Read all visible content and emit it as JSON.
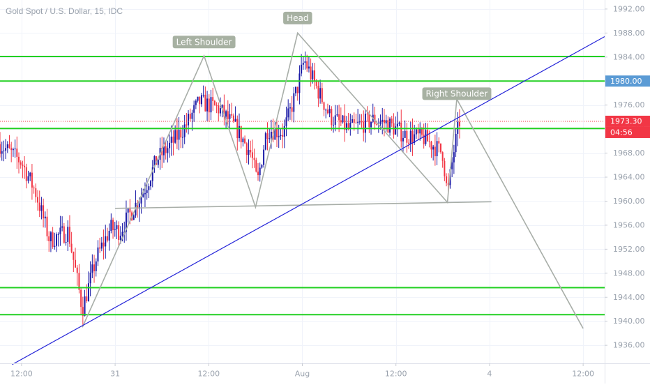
{
  "chart_data": {
    "type": "candlestick",
    "title": "Gold Spot / U.S. Dollar, 15, IDC",
    "y_axis": {
      "ticks": [
        1936,
        1940,
        1944,
        1948,
        1952,
        1956,
        1960,
        1964,
        1968,
        1972,
        1976,
        1980,
        1984,
        1988,
        1992
      ],
      "tick_labels": [
        "1936.00",
        "1940.00",
        "1944.00",
        "1948.00",
        "1952.00",
        "1956.00",
        "1960.00",
        "1964.00",
        "1968.00",
        "1972.00",
        "1976.00",
        "1980.00",
        "1984.00",
        "1988.00",
        "1992.00"
      ],
      "range": [
        1933,
        1993.5
      ]
    },
    "x_axis": {
      "tick_labels": [
        "12:00",
        "31",
        "12:00",
        "Aug",
        "12:00",
        "4",
        "12:00"
      ],
      "tick_positions": [
        0,
        1,
        2,
        3,
        4,
        5,
        6
      ],
      "range": [
        -0.23,
        6.23
      ]
    },
    "price_labels": [
      {
        "text": "1980.00",
        "value": 1980.0,
        "color": "#5b9bd5"
      },
      {
        "text": "1973.30",
        "value": 1973.3,
        "color": "#f23645"
      },
      {
        "text": "04:56",
        "value": 1973.3,
        "color": "#f23645",
        "countdown": true
      }
    ],
    "horizontal_levels": [
      1984.1,
      1980.0,
      1972.1,
      1945.6,
      1941.1
    ],
    "current_price": 1973.3,
    "trendline": {
      "from": {
        "x": -0.1,
        "y": 1932.8
      },
      "to": {
        "x": 6.23,
        "y": 1987.4
      }
    },
    "pattern": {
      "annotations": [
        {
          "label": "Left Shoulder",
          "x": 1.95,
          "y": 1986.5
        },
        {
          "label": "Head",
          "x": 2.95,
          "y": 1990.5
        },
        {
          "label": "Right Shoulder",
          "x": 4.65,
          "y": 1977.9
        }
      ],
      "zigzag": [
        {
          "x": 0.65,
          "y": 1939.0
        },
        {
          "x": 1.95,
          "y": 1984.2
        },
        {
          "x": 2.5,
          "y": 1959.0
        },
        {
          "x": 2.95,
          "y": 1988.0
        },
        {
          "x": 4.55,
          "y": 1959.8
        },
        {
          "x": 4.65,
          "y": 1977.0
        },
        {
          "x": 6.0,
          "y": 1938.8
        }
      ],
      "neckline": [
        {
          "x": 1.0,
          "y": 1958.8
        },
        {
          "x": 5.02,
          "y": 1959.9
        }
      ]
    },
    "candle_path": [
      {
        "x": -0.23,
        "y": 1969.5
      },
      {
        "x": 0.0,
        "y": 1966.5
      },
      {
        "x": 0.15,
        "y": 1961.5
      },
      {
        "x": 0.3,
        "y": 1953.5
      },
      {
        "x": 0.5,
        "y": 1955.0
      },
      {
        "x": 0.65,
        "y": 1942.0
      },
      {
        "x": 0.8,
        "y": 1950.5
      },
      {
        "x": 0.95,
        "y": 1955.5
      },
      {
        "x": 1.05,
        "y": 1955.0
      },
      {
        "x": 1.3,
        "y": 1961.5
      },
      {
        "x": 1.45,
        "y": 1967.0
      },
      {
        "x": 1.6,
        "y": 1969.5
      },
      {
        "x": 1.75,
        "y": 1972.5
      },
      {
        "x": 1.9,
        "y": 1976.5
      },
      {
        "x": 2.1,
        "y": 1975.5
      },
      {
        "x": 2.3,
        "y": 1972.0
      },
      {
        "x": 2.45,
        "y": 1968.0
      },
      {
        "x": 2.52,
        "y": 1963.0
      },
      {
        "x": 2.62,
        "y": 1972.0
      },
      {
        "x": 2.8,
        "y": 1971.5
      },
      {
        "x": 2.95,
        "y": 1979.0
      },
      {
        "x": 3.02,
        "y": 1983.5
      },
      {
        "x": 3.15,
        "y": 1979.0
      },
      {
        "x": 3.3,
        "y": 1974.0
      },
      {
        "x": 3.5,
        "y": 1972.0
      },
      {
        "x": 3.75,
        "y": 1973.5
      },
      {
        "x": 3.9,
        "y": 1973.0
      },
      {
        "x": 4.1,
        "y": 1971.0
      },
      {
        "x": 4.3,
        "y": 1970.5
      },
      {
        "x": 4.5,
        "y": 1968.0
      },
      {
        "x": 4.55,
        "y": 1961.0
      },
      {
        "x": 4.62,
        "y": 1968.5
      },
      {
        "x": 4.68,
        "y": 1973.3
      }
    ]
  }
}
